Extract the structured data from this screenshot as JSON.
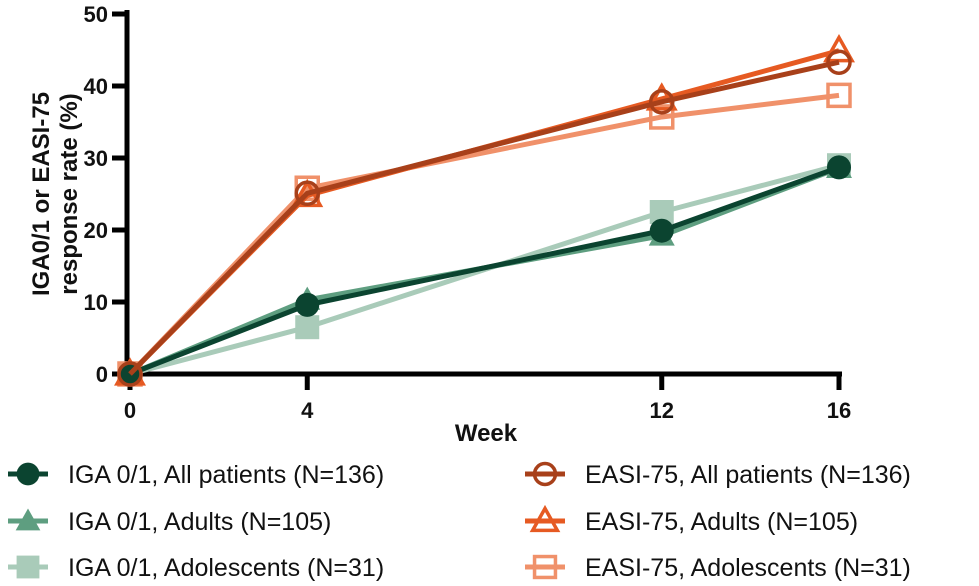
{
  "chart_data": {
    "type": "line",
    "title": "",
    "xlabel": "Week",
    "ylabel": [
      "IGA0/1 or EASI-75",
      "response rate (%)"
    ],
    "x": [
      0,
      4,
      12,
      16
    ],
    "x_ticks": [
      "0",
      "4",
      "12",
      "16"
    ],
    "y_ticks": [
      "0",
      "10",
      "20",
      "30",
      "40",
      "50"
    ],
    "xlim": [
      0,
      16
    ],
    "ylim": [
      0,
      50
    ],
    "grid": false,
    "legend_position": "bottom",
    "series": [
      {
        "name": "IGA 0/1, All patients (N=136)",
        "marker": "circle-filled",
        "color": "#0b4430",
        "values": [
          0,
          9.6,
          19.9,
          28.7
        ]
      },
      {
        "name": "IGA 0/1, Adults (N=105)",
        "marker": "triangle-filled",
        "color": "#5e9e80",
        "values": [
          0,
          10.3,
          19.2,
          28.6
        ]
      },
      {
        "name": "IGA 0/1, Adolescents (N=31)",
        "marker": "square-filled",
        "color": "#a9cbb9",
        "values": [
          0,
          6.5,
          22.5,
          29.0
        ]
      },
      {
        "name": "EASI-75, All patients (N=136)",
        "marker": "circle-open",
        "color": "#a8401a",
        "values": [
          0,
          25.1,
          37.8,
          43.3
        ]
      },
      {
        "name": "EASI-75, Adults (N=105)",
        "marker": "triangle-open",
        "color": "#e65a22",
        "values": [
          0,
          24.8,
          38.2,
          44.9
        ]
      },
      {
        "name": "EASI-75, Adolescents (N=31)",
        "marker": "square-open",
        "color": "#f0916a",
        "values": [
          0,
          25.8,
          35.7,
          38.7
        ]
      }
    ]
  }
}
